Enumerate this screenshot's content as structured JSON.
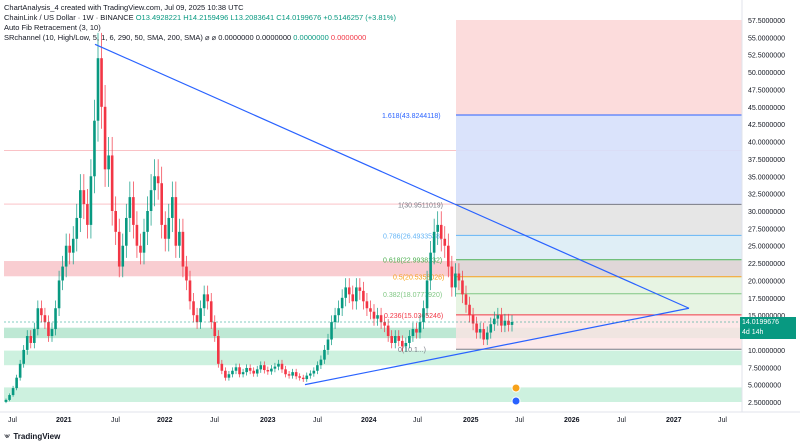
{
  "header": {
    "title": "ChartAnalysis_4 created with TradingView.com, Jul 09, 2025 10:38 UTC",
    "symbol": "ChainLink / US Dollar · 1W · BINANCE",
    "ohlc": "O13.4928221 H14.2159496 L13.2083641 C14.0199676 +0.5146257 (+3.81%)",
    "indicator1": "Auto Fib Retracement (3, 10)",
    "indicator2_name": "SRchannel (10, High/Low, 5, 1, 6, 290, 50, SMA, 200, SMA)",
    "indicator2_vals": [
      "0.0000000",
      "0.0000000"
    ],
    "indicator2_green": "0.0000000",
    "indicator2_red": "0.0000000"
  },
  "price_label": {
    "price": "14.0199676",
    "countdown": "4d 14h"
  },
  "footer": {
    "brand": "TradingView"
  },
  "colors": {
    "up": "#089981",
    "down": "#f23645",
    "line": "#2962ff",
    "text": "#131722"
  },
  "chart_data": {
    "type": "candlestick",
    "y_ticks": [
      "57.5000000",
      "55.0000000",
      "52.5000000",
      "50.0000000",
      "47.5000000",
      "45.0000000",
      "42.5000000",
      "40.0000000",
      "37.5000000",
      "35.0000000",
      "32.5000000",
      "30.0000000",
      "27.5000000",
      "25.0000000",
      "22.5000000",
      "20.0000000",
      "17.5000000",
      "15.0000000",
      "12.5000000",
      "10.0000000",
      "7.5000000",
      "5.0000000",
      "2.5000000"
    ],
    "x_ticks": [
      "Jul",
      "2021",
      "Jul",
      "2022",
      "Jul",
      "2023",
      "Jul",
      "2024",
      "Jul",
      "2025",
      "Jul",
      "2026",
      "Jul",
      "2027",
      "Jul"
    ],
    "fib_levels": [
      {
        "label": "1.618(43.8244118)",
        "value": 43.82
      },
      {
        "label": "1(30.9511019)",
        "value": 30.95
      },
      {
        "label": "0.786(26.4933538)",
        "value": 26.49
      },
      {
        "label": "0.618(22.9938132)",
        "value": 22.99
      },
      {
        "label": "0.5(20.5358026)",
        "value": 20.54
      },
      {
        "label": "0.382(18.0777920)",
        "value": 18.08
      },
      {
        "label": "0.236(15.0365246)",
        "value": 15.04
      },
      {
        "label": "0(10.1...)",
        "value": 10.1
      }
    ],
    "triangle": {
      "apex_price": 16.0,
      "top_start_price": 54.0,
      "bottom_start_price": 5.0
    },
    "last_close": 14.0199676
  }
}
